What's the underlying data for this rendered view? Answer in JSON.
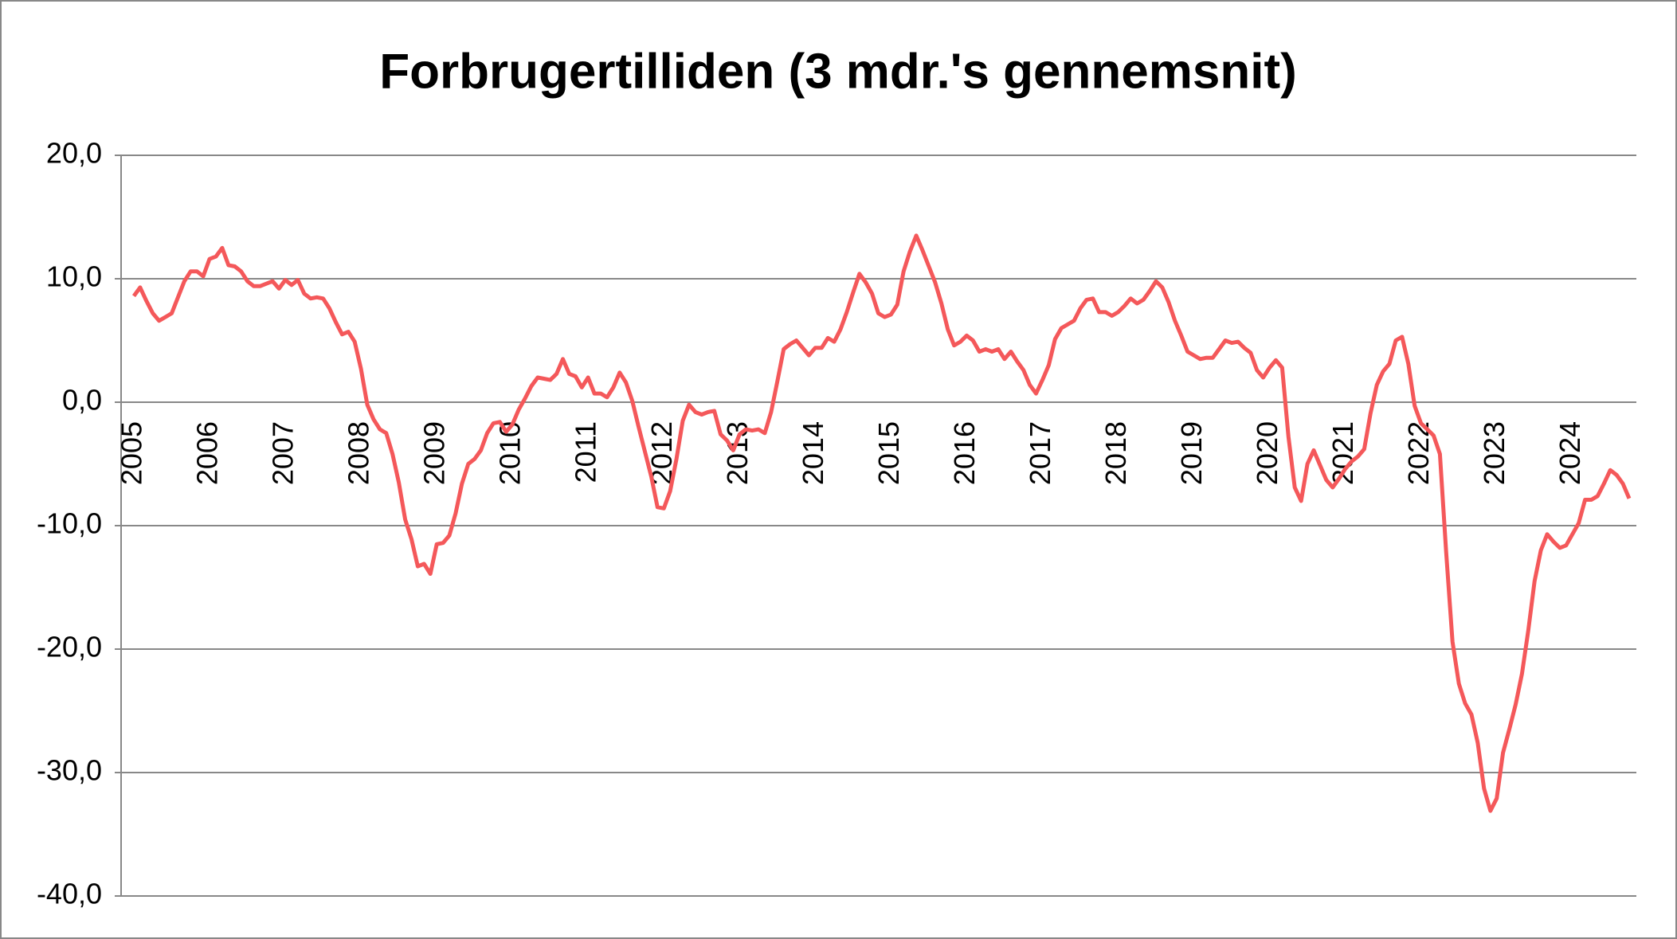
{
  "chart_data": {
    "type": "line",
    "title": "Forbrugertilliden (3 mdr.'s gennemsnit)",
    "categories": [
      "2005",
      null,
      null,
      null,
      null,
      null,
      null,
      null,
      null,
      null,
      null,
      null,
      "2006",
      null,
      null,
      null,
      null,
      null,
      null,
      null,
      null,
      null,
      null,
      null,
      "2007",
      null,
      null,
      null,
      null,
      null,
      null,
      null,
      null,
      null,
      null,
      null,
      "2008",
      null,
      null,
      null,
      null,
      null,
      null,
      null,
      null,
      null,
      null,
      null,
      "2009",
      null,
      null,
      null,
      null,
      null,
      null,
      null,
      null,
      null,
      null,
      null,
      "2010",
      null,
      null,
      null,
      null,
      null,
      null,
      null,
      null,
      null,
      null,
      null,
      "2011",
      null,
      null,
      null,
      null,
      null,
      null,
      null,
      null,
      null,
      null,
      null,
      "2012",
      null,
      null,
      null,
      null,
      null,
      null,
      null,
      null,
      null,
      null,
      null,
      "2013",
      null,
      null,
      null,
      null,
      null,
      null,
      null,
      null,
      null,
      null,
      null,
      "2014",
      null,
      null,
      null,
      null,
      null,
      null,
      null,
      null,
      null,
      null,
      null,
      "2015",
      null,
      null,
      null,
      null,
      null,
      null,
      null,
      null,
      null,
      null,
      null,
      "2016",
      null,
      null,
      null,
      null,
      null,
      null,
      null,
      null,
      null,
      null,
      null,
      "2017",
      null,
      null,
      null,
      null,
      null,
      null,
      null,
      null,
      null,
      null,
      null,
      "2018",
      null,
      null,
      null,
      null,
      null,
      null,
      null,
      null,
      null,
      null,
      null,
      "2019",
      null,
      null,
      null,
      null,
      null,
      null,
      null,
      null,
      null,
      null,
      null,
      "2020",
      null,
      null,
      null,
      null,
      null,
      null,
      null,
      null,
      null,
      null,
      null,
      "2021",
      null,
      null,
      null,
      null,
      null,
      null,
      null,
      null,
      null,
      null,
      null,
      "2022",
      null,
      null,
      null,
      null,
      null,
      null,
      null,
      null,
      null,
      null,
      null,
      "2023",
      null,
      null,
      null,
      null,
      null,
      null,
      null,
      null,
      null,
      null,
      null,
      "2024",
      null,
      null,
      null,
      null,
      null,
      null,
      null,
      null,
      null
    ],
    "values": [
      8.6,
      9.3,
      8.2,
      7.2,
      6.6,
      6.9,
      7.2,
      8.5,
      9.8,
      10.6,
      10.6,
      10.2,
      11.6,
      11.8,
      12.5,
      11.1,
      11.0,
      10.6,
      9.8,
      9.4,
      9.4,
      9.6,
      9.8,
      9.2,
      9.9,
      9.5,
      9.9,
      8.8,
      8.4,
      8.5,
      8.4,
      7.6,
      6.5,
      5.5,
      5.7,
      4.9,
      2.7,
      -0.2,
      -1.4,
      -2.2,
      -2.5,
      -4.2,
      -6.5,
      -9.5,
      -11.1,
      -13.3,
      -13.1,
      -13.9,
      -11.5,
      -11.4,
      -10.8,
      -9.0,
      -6.6,
      -5.0,
      -4.6,
      -3.9,
      -2.5,
      -1.7,
      -1.6,
      -2.4,
      -1.8,
      -0.6,
      0.3,
      1.3,
      2.0,
      1.9,
      1.8,
      2.3,
      3.5,
      2.3,
      2.1,
      1.2,
      2.0,
      0.7,
      0.7,
      0.4,
      1.2,
      2.4,
      1.6,
      0.1,
      -2.0,
      -4.0,
      -6.0,
      -8.5,
      -8.6,
      -7.2,
      -4.6,
      -1.5,
      -0.2,
      -0.8,
      -1.0,
      -0.8,
      -0.7,
      -2.6,
      -3.1,
      -3.9,
      -2.6,
      -2.2,
      -2.3,
      -2.2,
      -2.5,
      -0.8,
      1.7,
      4.3,
      4.7,
      5.0,
      4.4,
      3.8,
      4.4,
      4.4,
      5.2,
      4.9,
      5.9,
      7.3,
      8.9,
      10.4,
      9.7,
      8.8,
      7.2,
      6.9,
      7.1,
      7.9,
      10.6,
      12.2,
      13.5,
      12.3,
      11.0,
      9.7,
      8.0,
      5.9,
      4.6,
      4.9,
      5.4,
      5.0,
      4.1,
      4.3,
      4.1,
      4.3,
      3.5,
      4.1,
      3.3,
      2.6,
      1.4,
      0.7,
      1.8,
      3.0,
      5.1,
      6.0,
      6.3,
      6.6,
      7.6,
      8.3,
      8.4,
      7.3,
      7.3,
      7.0,
      7.3,
      7.8,
      8.4,
      8.0,
      8.3,
      9.0,
      9.8,
      9.3,
      8.1,
      6.6,
      5.4,
      4.1,
      3.8,
      3.5,
      3.6,
      3.6,
      4.3,
      5.0,
      4.8,
      4.9,
      4.4,
      4.0,
      2.6,
      2.0,
      2.8,
      3.4,
      2.8,
      -2.8,
      -6.9,
      -8.0,
      -5.0,
      -3.9,
      -5.1,
      -6.3,
      -6.9,
      -6.2,
      -5.4,
      -4.8,
      -4.4,
      -3.8,
      -0.9,
      1.4,
      2.5,
      3.1,
      5.0,
      5.3,
      3.1,
      -0.3,
      -1.7,
      -2.2,
      -2.7,
      -4.2,
      -12.2,
      -19.4,
      -22.8,
      -24.4,
      -25.3,
      -27.6,
      -31.3,
      -33.1,
      -32.1,
      -28.4,
      -26.5,
      -24.5,
      -22.0,
      -18.5,
      -14.5,
      -12.0,
      -10.7,
      -11.3,
      -11.8,
      -11.6,
      -10.7,
      -9.8,
      -7.9,
      -7.9,
      -7.6,
      -6.6,
      -5.5,
      -5.9,
      -6.6,
      -7.8
    ],
    "color": "#f4585a",
    "ylim": [
      -40,
      20
    ],
    "yticks": [
      {
        "value": -40,
        "label": "-40,0"
      },
      {
        "value": -30,
        "label": "-30,0"
      },
      {
        "value": -20,
        "label": "-20,0"
      },
      {
        "value": -10,
        "label": "-10,0"
      },
      {
        "value": 0,
        "label": "0,0"
      },
      {
        "value": 10,
        "label": "10,0"
      },
      {
        "value": 20,
        "label": "20,0"
      }
    ],
    "grid": true
  }
}
